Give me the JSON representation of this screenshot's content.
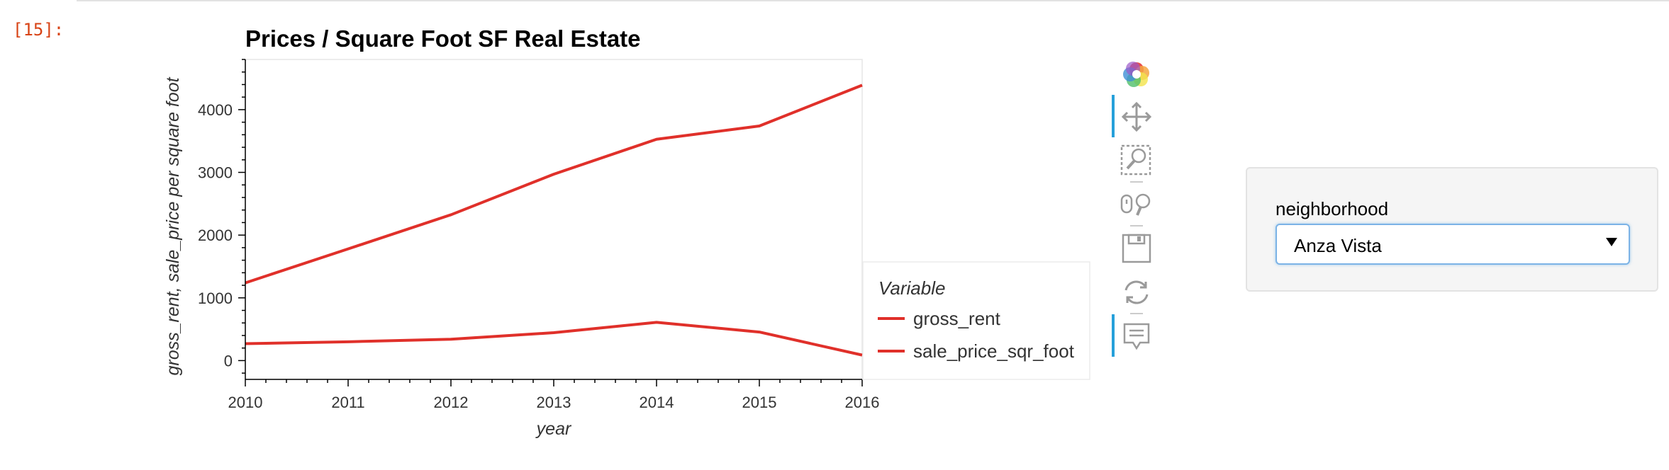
{
  "cell": {
    "prompt": "[15]:"
  },
  "chart_data": {
    "type": "line",
    "title": "Prices / Square Foot SF Real Estate",
    "xlabel": "year",
    "ylabel": "gross_rent, sale_price per square foot",
    "x": [
      2010,
      2011,
      2012,
      2013,
      2014,
      2015,
      2016
    ],
    "xlim": [
      2010,
      2016
    ],
    "ylim": [
      -300,
      4800
    ],
    "x_ticks": [
      "2010",
      "2011",
      "2012",
      "2013",
      "2014",
      "2015",
      "2016"
    ],
    "y_ticks": [
      "0",
      "1000",
      "2000",
      "3000",
      "4000"
    ],
    "y_tick_values": [
      0,
      1000,
      2000,
      3000,
      4000
    ],
    "grid": false,
    "legend": {
      "title": "Variable",
      "placement": "right"
    },
    "series": [
      {
        "name": "gross_rent",
        "color": "#e0302a",
        "values": [
          1239,
          1780,
          2324,
          2971,
          3528,
          3739,
          4390
        ]
      },
      {
        "name": "sale_price_sqr_foot",
        "color": "#e0302a",
        "values": [
          270,
          300,
          340,
          445,
          610,
          455,
          88
        ]
      }
    ]
  },
  "toolbar": {
    "tools": [
      {
        "icon": "bokeh-logo-icon"
      },
      {
        "icon": "pan-icon",
        "active": true
      },
      {
        "icon": "box-zoom-icon"
      },
      {
        "icon": "wheel-zoom-icon"
      },
      {
        "icon": "save-icon"
      },
      {
        "icon": "reset-icon"
      },
      {
        "icon": "hover-icon",
        "active": true
      }
    ]
  },
  "widget": {
    "label": "neighborhood",
    "selected": "Anza Vista"
  }
}
